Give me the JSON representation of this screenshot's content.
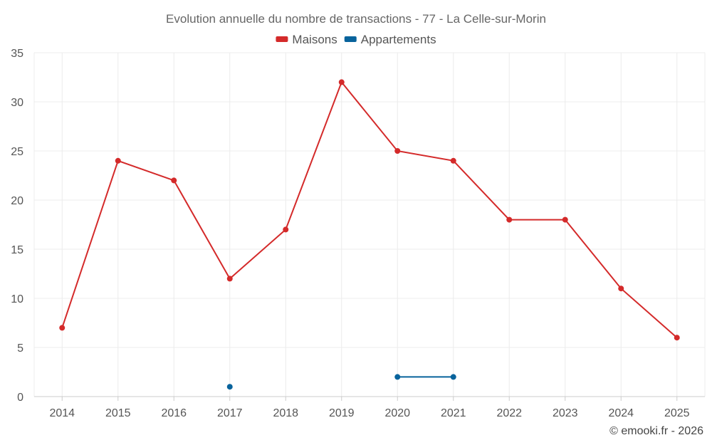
{
  "chart_data": {
    "type": "line",
    "title": "Evolution annuelle du nombre de transactions - 77 - La Celle-sur-Morin",
    "categories": [
      "2014",
      "2015",
      "2016",
      "2017",
      "2018",
      "2019",
      "2020",
      "2021",
      "2022",
      "2023",
      "2024",
      "2025"
    ],
    "ylim": [
      0,
      35
    ],
    "yticks": [
      0,
      5,
      10,
      15,
      20,
      25,
      30,
      35
    ],
    "legend_position": "top-center",
    "grid": true,
    "series": [
      {
        "name": "Maisons",
        "color": "#d42a2a",
        "values": [
          7,
          24,
          22,
          12,
          17,
          32,
          25,
          24,
          18,
          18,
          11,
          6
        ]
      },
      {
        "name": "Appartements",
        "color": "#08639c",
        "values": [
          null,
          null,
          null,
          1,
          null,
          null,
          2,
          2,
          null,
          null,
          null,
          null
        ]
      }
    ],
    "credit": "© emooki.fr - 2026"
  }
}
